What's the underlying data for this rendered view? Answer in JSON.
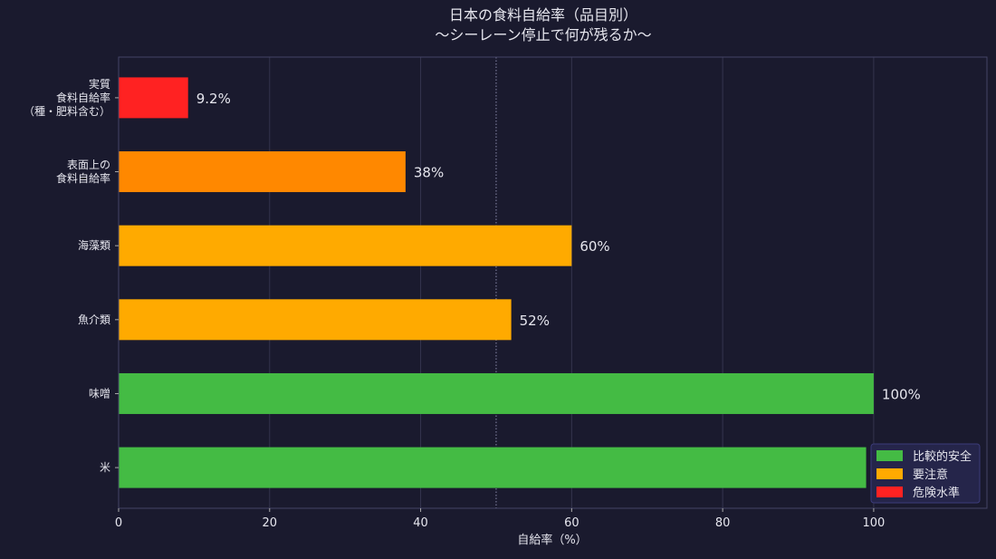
{
  "chart_data": {
    "type": "bar",
    "orientation": "horizontal",
    "title_lines": [
      "日本の食料自給率（品目別）",
      "〜シーレーン停止で何が残るか〜"
    ],
    "xlabel": "自給率（%）",
    "ylabel": "",
    "xlim": [
      0,
      115
    ],
    "xticks": [
      0,
      20,
      40,
      60,
      80,
      100
    ],
    "grid": "vertical",
    "reference_line": {
      "x": 50,
      "style": "dotted"
    },
    "categories": [
      {
        "lines": [
          "実質",
          "食料自給率",
          "（種・肥料含む）"
        ],
        "value": 9.2,
        "label": "9.2%",
        "color": "#ff2222"
      },
      {
        "lines": [
          "表面上の",
          "食料自給率"
        ],
        "value": 38,
        "label": "38%",
        "color": "#ff8800"
      },
      {
        "lines": [
          "海藻類"
        ],
        "value": 60,
        "label": "60%",
        "color": "#ffaa00"
      },
      {
        "lines": [
          "魚介類"
        ],
        "value": 52,
        "label": "52%",
        "color": "#ffaa00"
      },
      {
        "lines": [
          "味噌"
        ],
        "value": 100,
        "label": "100%",
        "color": "#44bb44"
      },
      {
        "lines": [
          "米"
        ],
        "value": 99,
        "label": "99%",
        "color": "#44bb44"
      }
    ],
    "legend": {
      "placement": "lower-right",
      "entries": [
        {
          "label": "比較的安全",
          "color": "#44bb44"
        },
        {
          "label": "要注意",
          "color": "#ffaa00"
        },
        {
          "label": "危険水準",
          "color": "#ff2222"
        }
      ]
    }
  }
}
